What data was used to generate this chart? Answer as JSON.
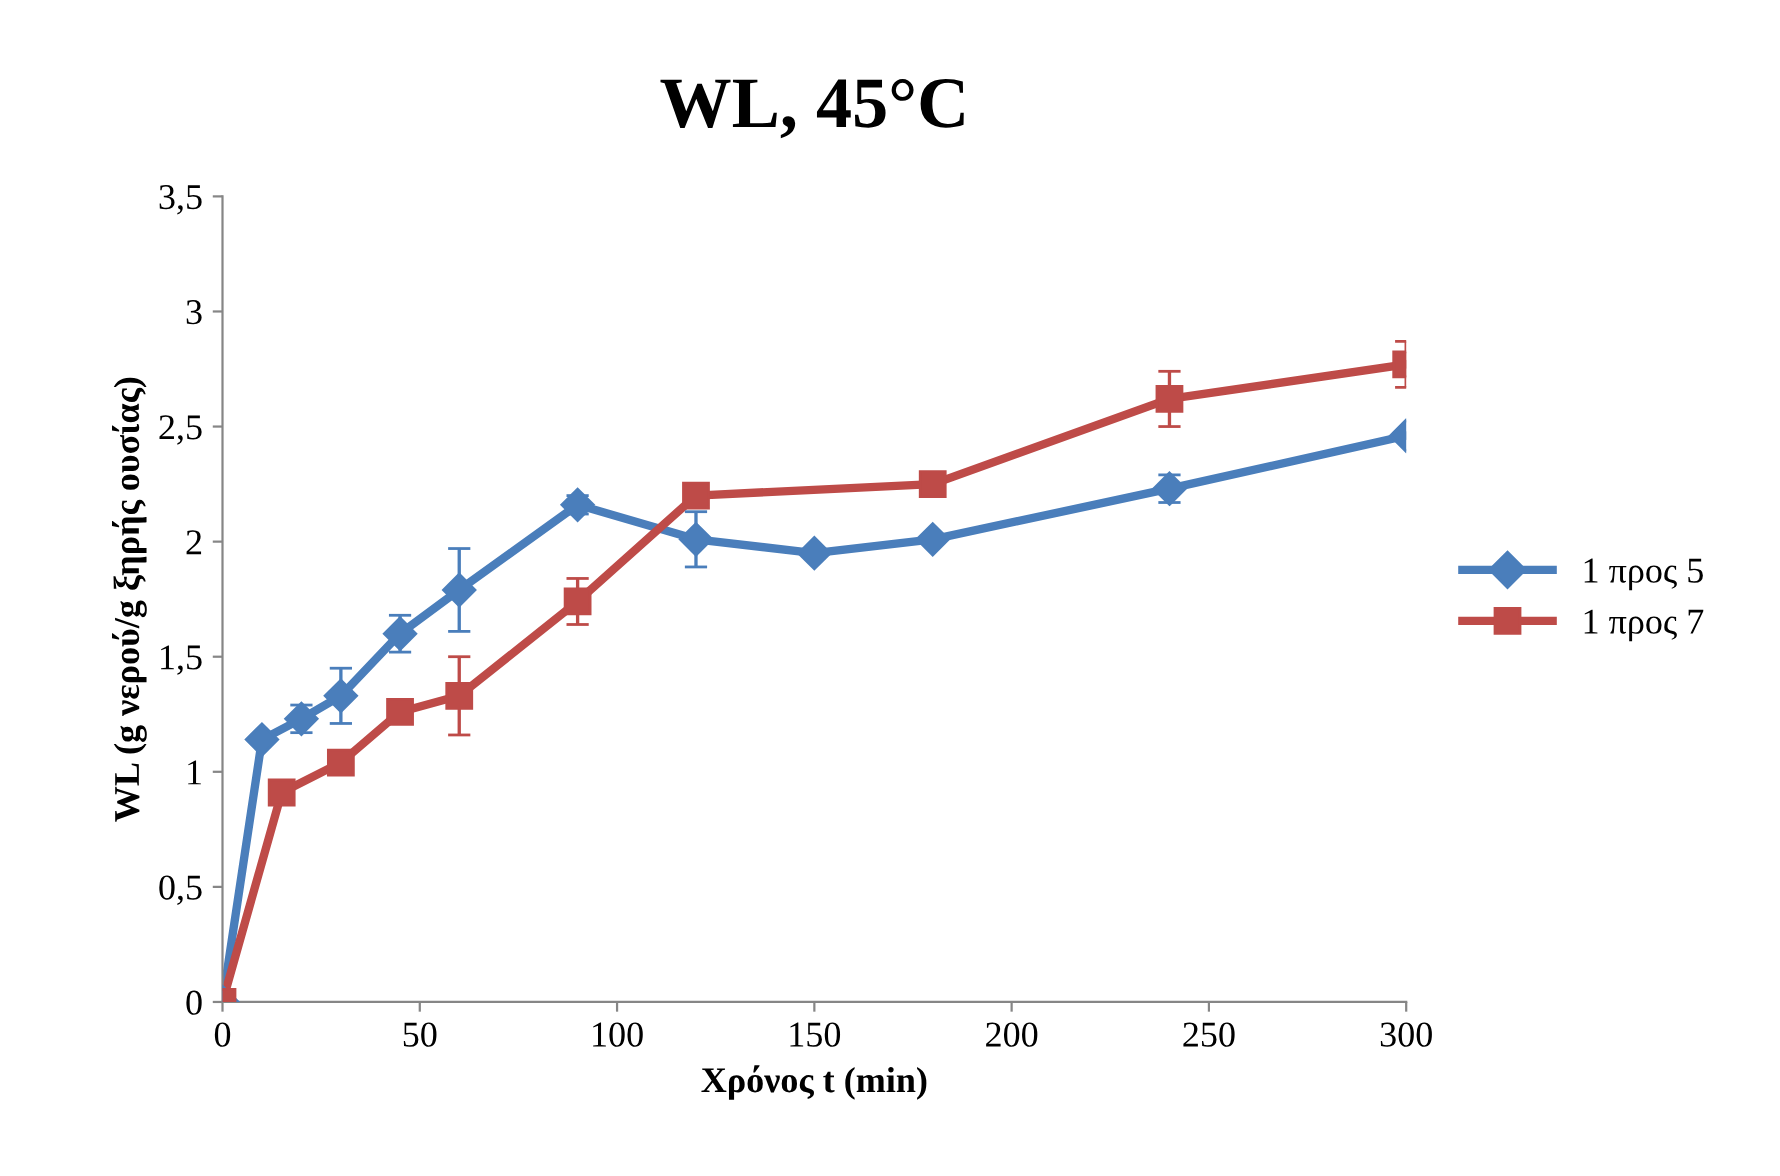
{
  "chart_data": {
    "type": "line",
    "title": "WL, 45°C",
    "xlabel": "Χρόνος t (min)",
    "ylabel": "WL (g νερού/g ξηρής ουσίας)",
    "xlim": [
      0,
      300
    ],
    "xticks": [
      0,
      50,
      100,
      150,
      200,
      250,
      300
    ],
    "ylim": [
      0,
      3.5
    ],
    "yticks": [
      0,
      {
        "value": 0.5,
        "label": "0,5"
      },
      1,
      {
        "value": 1.5,
        "label": "1,5"
      },
      2,
      {
        "value": 2.5,
        "label": "2,5"
      },
      3,
      {
        "value": 3.5,
        "label": "3,5"
      }
    ],
    "grid": false,
    "legend": "right",
    "line_style": "solid",
    "series": [
      {
        "name": "1 προς 5",
        "color": "#4a7ebb",
        "marker": "diamond",
        "x": [
          0,
          10,
          20,
          30,
          45,
          60,
          90,
          120,
          150,
          180,
          240,
          300
        ],
        "values": [
          0,
          1.14,
          1.23,
          1.33,
          1.6,
          1.79,
          2.16,
          2.01,
          1.95,
          2.01,
          2.23,
          2.46
        ],
        "errors": [
          null,
          0.02,
          0.06,
          0.12,
          0.08,
          0.18,
          0.04,
          0.12,
          0.02,
          null,
          0.06,
          null
        ]
      },
      {
        "name": "1 προς 7",
        "color": "#be4b48",
        "marker": "square",
        "x": [
          0,
          15,
          30,
          45,
          60,
          90,
          120,
          180,
          240,
          300
        ],
        "values": [
          0,
          0.91,
          1.04,
          1.26,
          1.33,
          1.74,
          2.2,
          2.25,
          2.62,
          2.77
        ],
        "errors": [
          null,
          null,
          null,
          null,
          0.17,
          0.1,
          null,
          null,
          0.12,
          0.1
        ]
      }
    ]
  }
}
